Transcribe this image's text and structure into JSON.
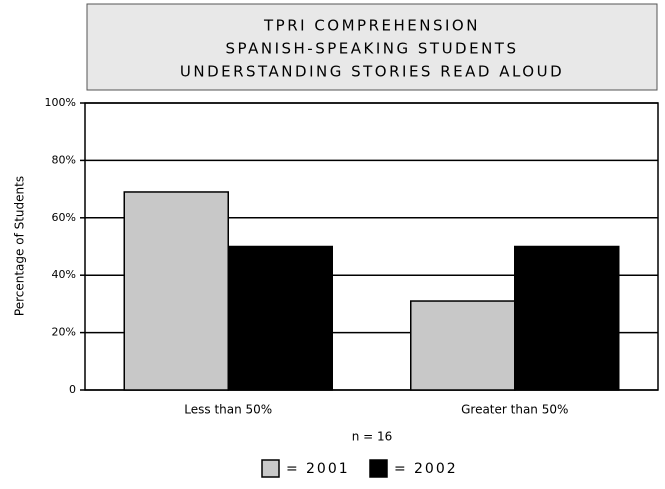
{
  "chart_data": {
    "type": "bar",
    "title": [
      "TPRI COMPREHENSION",
      "SPANISH-SPEAKING STUDENTS",
      "UNDERSTANDING STORIES READ ALOUD"
    ],
    "y_label": "Percentage of Students",
    "annotation": "n = 16",
    "legend_separator": "=",
    "categories": [
      "Less than 50%",
      "Greater than 50%"
    ],
    "series": [
      {
        "name": "2001",
        "color": "#c8c8c8",
        "values": [
          69,
          31
        ]
      },
      {
        "name": "2002",
        "color": "#000000",
        "values": [
          50,
          50
        ]
      }
    ],
    "ylim": [
      0,
      100
    ],
    "yticks": [
      0,
      {
        "value": 20,
        "label": "20%"
      },
      {
        "value": 40,
        "label": "40%"
      },
      {
        "value": 60,
        "label": "60%"
      },
      {
        "value": 80,
        "label": "80%"
      },
      {
        "value": 100,
        "label": "100%"
      }
    ],
    "grid": true
  }
}
